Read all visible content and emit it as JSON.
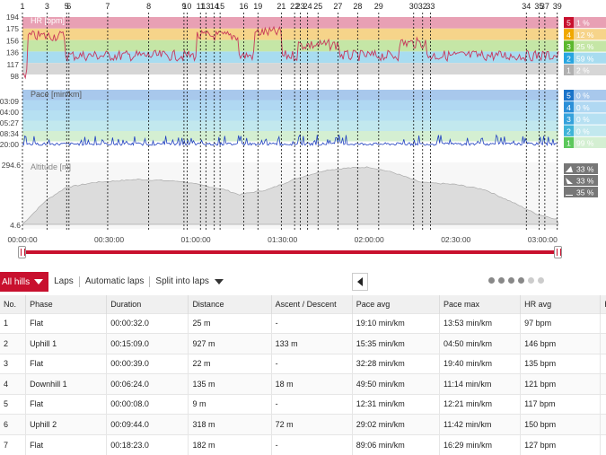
{
  "lap_markers": [
    {
      "label": "1",
      "t": 0
    },
    {
      "label": "3",
      "t": 8.5
    },
    {
      "label": "5",
      "t": 15.3
    },
    {
      "label": "6",
      "t": 16.1
    },
    {
      "label": "7",
      "t": 29.5
    },
    {
      "label": "8",
      "t": 43.7
    },
    {
      "label": "9",
      "t": 55.9
    },
    {
      "label": "10",
      "t": 57.0
    },
    {
      "label": "11",
      "t": 61.6
    },
    {
      "label": "13",
      "t": 63.5
    },
    {
      "label": "14",
      "t": 66.4
    },
    {
      "label": "15",
      "t": 68.4
    },
    {
      "label": "16",
      "t": 76.6
    },
    {
      "label": "19",
      "t": 81.5
    },
    {
      "label": "21",
      "t": 89.6
    },
    {
      "label": "22",
      "t": 94.2
    },
    {
      "label": "23",
      "t": 96.2
    },
    {
      "label": "24",
      "t": 98.7
    },
    {
      "label": "25",
      "t": 102.3
    },
    {
      "label": "27",
      "t": 109.2
    },
    {
      "label": "28",
      "t": 116.0
    },
    {
      "label": "29",
      "t": 123.3
    },
    {
      "label": "30",
      "t": 135.4
    },
    {
      "label": "32",
      "t": 138.5
    },
    {
      "label": "33",
      "t": 141.2
    },
    {
      "label": "34",
      "t": 174.4
    },
    {
      "label": "35",
      "t": 178.8
    },
    {
      "label": "37",
      "t": 180.8
    },
    {
      "label": "39",
      "t": 185.1
    }
  ],
  "hr_panel": {
    "title": "HR [bpm]",
    "ticks": [
      "194",
      "175",
      "156",
      "136",
      "117",
      "98"
    ],
    "zones": [
      {
        "zone": "5",
        "pct": "1 %",
        "color": "#e8a0b4",
        "badge": "#c8102e"
      },
      {
        "zone": "4",
        "pct": "12 %",
        "color": "#f6d48a",
        "badge": "#f0a800"
      },
      {
        "zone": "3",
        "pct": "25 %",
        "color": "#c5e6a6",
        "badge": "#5cb82e"
      },
      {
        "zone": "2",
        "pct": "59 %",
        "color": "#a8dcf0",
        "badge": "#27a5e0"
      },
      {
        "zone": "1",
        "pct": "2 %",
        "color": "#d6d6d6",
        "badge": "#b0b0b0"
      }
    ]
  },
  "pace_panel": {
    "title": "Pace [min/km]",
    "ticks": [
      "03:09",
      "04:00",
      "05:27",
      "08:34",
      "20:00"
    ],
    "zones": [
      {
        "zone": "5",
        "pct": "0 %",
        "color": "#a8c8ec",
        "badge": "#1a73c9"
      },
      {
        "zone": "4",
        "pct": "0 %",
        "color": "#b0d8f2",
        "badge": "#2b8fd8"
      },
      {
        "zone": "3",
        "pct": "0 %",
        "color": "#b6e0f2",
        "badge": "#35a2dc"
      },
      {
        "zone": "2",
        "pct": "0 %",
        "color": "#c2e8ee",
        "badge": "#3fb4d8"
      },
      {
        "zone": "1",
        "pct": "99 %",
        "color": "#d4efd2",
        "badge": "#5cc85c"
      }
    ]
  },
  "alt_panel": {
    "title": "Altitude [m]",
    "ticks": [
      "294.6",
      "4.6"
    ],
    "stats": [
      {
        "icon": "uphill-icon",
        "pct": "33 %"
      },
      {
        "icon": "downhill-icon",
        "pct": "33 %"
      },
      {
        "icon": "flat-icon",
        "pct": "35 %"
      }
    ]
  },
  "time_axis": [
    "00:00:00",
    "00:30:00",
    "01:00:00",
    "01:30:00",
    "02:00:00",
    "02:30:00",
    "03:00:00"
  ],
  "toolbar": {
    "filter_label": "All hills",
    "laps_label": "Laps",
    "auto_laps_label": "Automatic laps",
    "split_label": "Split into laps"
  },
  "table": {
    "headers": [
      "No.",
      "Phase",
      "Duration",
      "Distance",
      "Ascent / Descent",
      "Pace avg",
      "Pace max",
      "HR avg",
      "H"
    ],
    "rows": [
      [
        "1",
        "Flat",
        "00:00:32.0",
        "25 m",
        "-",
        "19:10 min/km",
        "13:53 min/km",
        "97 bpm"
      ],
      [
        "2",
        "Uphill 1",
        "00:15:09.0",
        "927 m",
        "133 m",
        "15:35 min/km",
        "04:50 min/km",
        "146 bpm"
      ],
      [
        "3",
        "Flat",
        "00:00:39.0",
        "22 m",
        "-",
        "32:28 min/km",
        "19:40 min/km",
        "135 bpm"
      ],
      [
        "4",
        "Downhill 1",
        "00:06:24.0",
        "135 m",
        "18 m",
        "49:50 min/km",
        "11:14 min/km",
        "121 bpm"
      ],
      [
        "5",
        "Flat",
        "00:00:08.0",
        "9 m",
        "-",
        "12:31 min/km",
        "12:21 min/km",
        "117 bpm"
      ],
      [
        "6",
        "Uphill 2",
        "00:09:44.0",
        "318 m",
        "72 m",
        "29:02 min/km",
        "11:42 min/km",
        "150 bpm"
      ],
      [
        "7",
        "Flat",
        "00:18:23.0",
        "182 m",
        "-",
        "89:06 min/km",
        "16:29 min/km",
        "127 bpm"
      ]
    ]
  },
  "colors": {
    "accent": "#c8102e",
    "hr_line": "#c8385a",
    "pace_line": "#2040c0",
    "alt_fill": "#dcdcdc"
  }
}
